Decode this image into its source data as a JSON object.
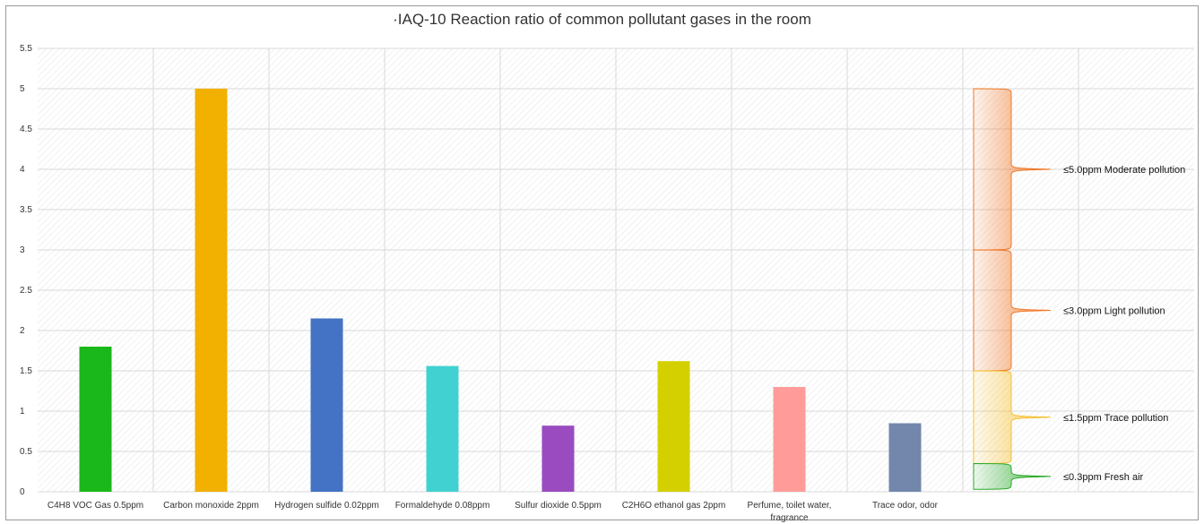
{
  "chart_data": {
    "type": "bar",
    "title": "·IAQ-10 Reaction ratio of common pollutant gases in the room",
    "ylim": [
      0,
      5.5
    ],
    "yticks": [
      "0",
      "0.5",
      "1",
      "1.5",
      "2",
      "2.5",
      "3",
      "3.5",
      "4",
      "4.5",
      "5",
      "5.5"
    ],
    "grid": true,
    "categories": [
      "C4H8 VOC Gas 0.5ppm",
      "Carbon monoxide 2ppm",
      "Hydrogen sulfide 0.02ppm",
      "Formaldehyde 0.08ppm",
      "Sulfur dioxide 0.5ppm",
      "C2H6O ethanol gas 2ppm",
      "Perfume, toilet water, fragrance",
      "Trace odor, odor"
    ],
    "category_lines": [
      [
        "C4H8 VOC Gas 0.5ppm"
      ],
      [
        "Carbon monoxide 2ppm"
      ],
      [
        "Hydrogen sulfide 0.02ppm"
      ],
      [
        "Formaldehyde 0.08ppm"
      ],
      [
        "Sulfur dioxide 0.5ppm"
      ],
      [
        "C2H6O ethanol gas 2ppm"
      ],
      [
        "Perfume, toilet water,",
        "fragrance"
      ],
      [
        "Trace odor, odor"
      ]
    ],
    "values": [
      1.8,
      5.0,
      2.15,
      1.56,
      0.82,
      1.62,
      1.3,
      0.85
    ],
    "colors": [
      "#1ab81a",
      "#f2b000",
      "#4472c4",
      "#42d1d1",
      "#9a4bbf",
      "#d4d000",
      "#ff9c99",
      "#7387ad"
    ],
    "brackets": [
      {
        "label": "≤5.0ppm Moderate pollution",
        "from": 3.0,
        "to": 5.0,
        "color": "#f07828"
      },
      {
        "label": "≤3.0ppm Light pollution",
        "from": 1.5,
        "to": 3.0,
        "color": "#f07828"
      },
      {
        "label": "≤1.5ppm Trace pollution",
        "from": 0.35,
        "to": 1.5,
        "color": "#f5c030"
      },
      {
        "label": "≤0.3ppm Fresh air",
        "from": 0.03,
        "to": 0.35,
        "color": "#2aaa2a"
      }
    ]
  }
}
